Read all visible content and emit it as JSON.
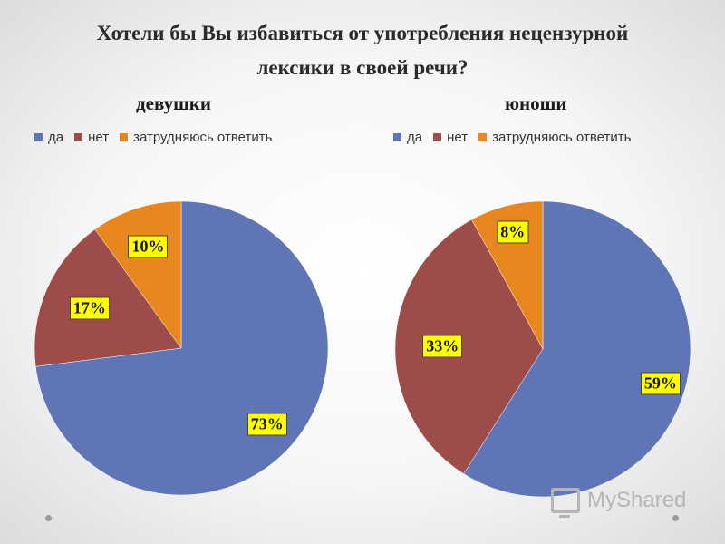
{
  "chart_data": [
    {
      "type": "pie",
      "title_lines": [
        "Хотели бы Вы избавиться от употребления нецензурной",
        "лексики в своей речи?"
      ],
      "subtitle": "девушки",
      "legend": [
        "да",
        "нет",
        "затрудняюсь ответить"
      ],
      "legend_placement": "top",
      "series": [
        {
          "name": "да",
          "value": 73,
          "label": "73%"
        },
        {
          "name": "нет",
          "value": 17,
          "label": "17%"
        },
        {
          "name": "затрудняюсь ответить",
          "value": 10,
          "label": "10%"
        }
      ]
    },
    {
      "type": "pie",
      "subtitle": "юноши",
      "legend": [
        "да",
        "нет",
        "затрудняюсь ответить"
      ],
      "legend_placement": "top",
      "series": [
        {
          "name": "да",
          "value": 59,
          "label": "59%"
        },
        {
          "name": "нет",
          "value": 33,
          "label": "33%"
        },
        {
          "name": "затрудняюсь ответить",
          "value": 8,
          "label": "8%"
        }
      ]
    }
  ],
  "colors": [
    "#6075b5",
    "#9e4c4a",
    "#e8871e"
  ],
  "label_color": "#ffff00",
  "watermark": "MyShared"
}
